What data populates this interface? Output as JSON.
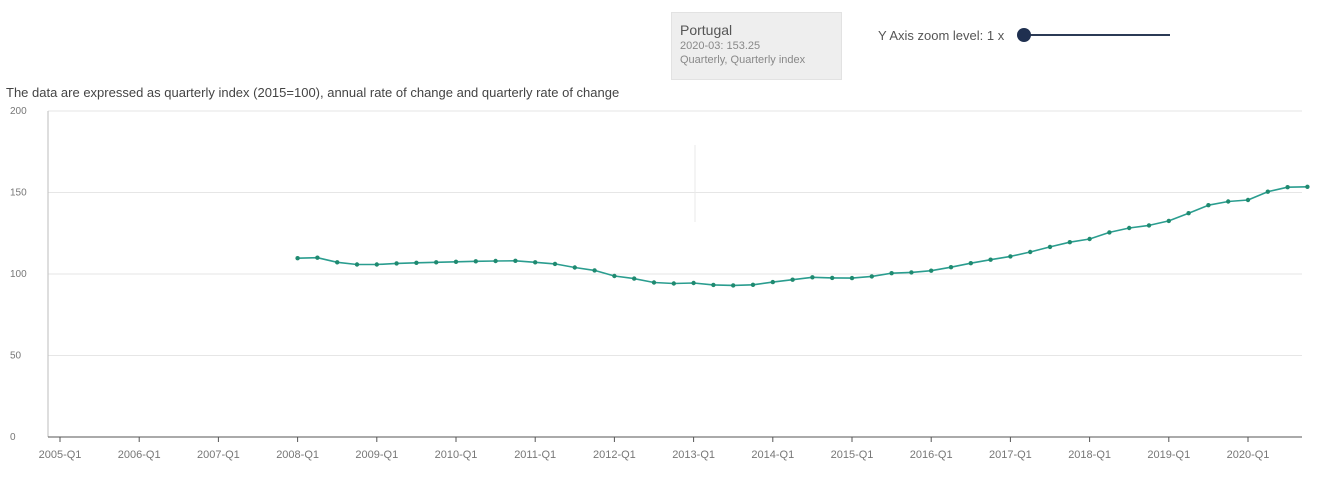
{
  "tooltip": {
    "country": "Portugal",
    "timestamp": "2020-03: 153.25",
    "series_kind": "Quarterly, Quarterly index"
  },
  "zoom": {
    "label": "Y Axis zoom level: 1 x",
    "value": 1
  },
  "subtitle": "The data are expressed as quarterly index (2015=100), annual rate of change and quarterly rate of change",
  "colors": {
    "line": "#2a9d8f",
    "marker": "#1f8a70",
    "axis": "#555555",
    "grid": "#e6e6e6",
    "knob": "#1f3050"
  },
  "chart_data": {
    "type": "line",
    "title": "",
    "xlabel": "",
    "ylabel": "",
    "ylim": [
      0,
      200
    ],
    "y_ticks": [
      {
        "value": 0,
        "label": "0"
      },
      {
        "value": 50,
        "label": "50"
      },
      {
        "value": 100,
        "label": "100"
      },
      {
        "value": 150,
        "label": "150"
      },
      {
        "value": 200,
        "label": "200"
      }
    ],
    "x_ticks": [
      "2005-Q1",
      "2006-Q1",
      "2007-Q1",
      "2008-Q1",
      "2009-Q1",
      "2010-Q1",
      "2011-Q1",
      "2012-Q1",
      "2013-Q1",
      "2014-Q1",
      "2015-Q1",
      "2016-Q1",
      "2017-Q1",
      "2018-Q1",
      "2019-Q1",
      "2020-Q1"
    ],
    "grid": true,
    "legend": "none",
    "series": [
      {
        "values": [
          {
            "x": "2008-Q1",
            "y": 109.7
          },
          {
            "x": "2008-Q2",
            "y": 110.0
          },
          {
            "x": "2008-Q3",
            "y": 107.2
          },
          {
            "x": "2008-Q4",
            "y": 105.8
          },
          {
            "x": "2009-Q1",
            "y": 105.8
          },
          {
            "x": "2009-Q2",
            "y": 106.5
          },
          {
            "x": "2009-Q3",
            "y": 106.9
          },
          {
            "x": "2009-Q4",
            "y": 107.2
          },
          {
            "x": "2010-Q1",
            "y": 107.5
          },
          {
            "x": "2010-Q2",
            "y": 107.8
          },
          {
            "x": "2010-Q3",
            "y": 108.0
          },
          {
            "x": "2010-Q4",
            "y": 108.1
          },
          {
            "x": "2011-Q1",
            "y": 107.2
          },
          {
            "x": "2011-Q2",
            "y": 106.2
          },
          {
            "x": "2011-Q3",
            "y": 104.0
          },
          {
            "x": "2011-Q4",
            "y": 102.2
          },
          {
            "x": "2012-Q1",
            "y": 98.8
          },
          {
            "x": "2012-Q2",
            "y": 97.2
          },
          {
            "x": "2012-Q3",
            "y": 94.8
          },
          {
            "x": "2012-Q4",
            "y": 94.2
          },
          {
            "x": "2013-Q1",
            "y": 94.5
          },
          {
            "x": "2013-Q2",
            "y": 93.3
          },
          {
            "x": "2013-Q3",
            "y": 93.0
          },
          {
            "x": "2013-Q4",
            "y": 93.4
          },
          {
            "x": "2014-Q1",
            "y": 95.0
          },
          {
            "x": "2014-Q2",
            "y": 96.5
          },
          {
            "x": "2014-Q3",
            "y": 98.0
          },
          {
            "x": "2014-Q4",
            "y": 97.6
          },
          {
            "x": "2015-Q1",
            "y": 97.5
          },
          {
            "x": "2015-Q2",
            "y": 98.5
          },
          {
            "x": "2015-Q3",
            "y": 100.5
          },
          {
            "x": "2015-Q4",
            "y": 101.0
          },
          {
            "x": "2016-Q1",
            "y": 102.0
          },
          {
            "x": "2016-Q2",
            "y": 104.2
          },
          {
            "x": "2016-Q3",
            "y": 106.6
          },
          {
            "x": "2016-Q4",
            "y": 108.8
          },
          {
            "x": "2017-Q1",
            "y": 110.8
          },
          {
            "x": "2017-Q2",
            "y": 113.5
          },
          {
            "x": "2017-Q3",
            "y": 116.6
          },
          {
            "x": "2017-Q4",
            "y": 119.5
          },
          {
            "x": "2018-Q1",
            "y": 121.5
          },
          {
            "x": "2018-Q2",
            "y": 125.5
          },
          {
            "x": "2018-Q3",
            "y": 128.2
          },
          {
            "x": "2018-Q4",
            "y": 129.8
          },
          {
            "x": "2019-Q1",
            "y": 132.6
          },
          {
            "x": "2019-Q2",
            "y": 137.3
          },
          {
            "x": "2019-Q3",
            "y": 142.2
          },
          {
            "x": "2019-Q4",
            "y": 144.5
          },
          {
            "x": "2020-Q1",
            "y": 145.4
          },
          {
            "x": "2020-Q2",
            "y": 150.5
          },
          {
            "x": "2020-Q3",
            "y": 153.25
          },
          {
            "x": "2020-Q4",
            "y": 153.5
          }
        ]
      }
    ]
  }
}
